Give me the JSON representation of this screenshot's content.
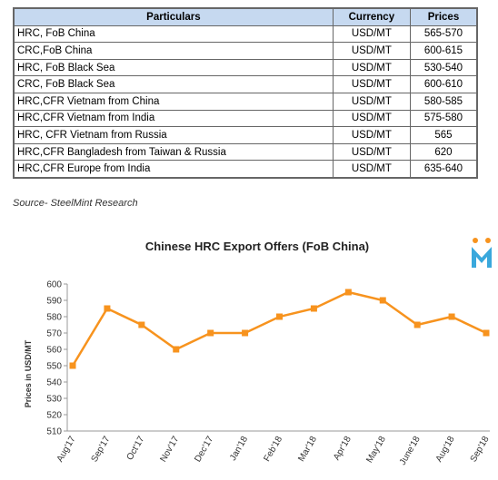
{
  "table": {
    "header": [
      "Particulars",
      "Currency",
      "Prices"
    ],
    "rows": [
      [
        "HRC, FoB China",
        "USD/MT",
        "565-570"
      ],
      [
        "CRC,FoB China",
        "USD/MT",
        "600-615"
      ],
      [
        "HRC, FoB Black Sea",
        "USD/MT",
        "530-540"
      ],
      [
        "CRC, FoB Black Sea",
        "USD/MT",
        "600-610"
      ],
      [
        "HRC,CFR Vietnam from China",
        "USD/MT",
        "580-585"
      ],
      [
        "HRC,CFR Vietnam from India",
        "USD/MT",
        "575-580"
      ],
      [
        "HRC, CFR Vietnam from Russia",
        "USD/MT",
        "565"
      ],
      [
        "HRC,CFR Bangladesh from Taiwan & Russia",
        "USD/MT",
        "620"
      ],
      [
        "HRC,CFR Europe from India",
        "USD/MT",
        "635-640"
      ]
    ]
  },
  "source": "Source- SteelMint Research",
  "chart_data": {
    "type": "line",
    "title": "Chinese HRC Export Offers (FoB China)",
    "y_label": "Prices in USD/MT",
    "categories": [
      "Aug'17",
      "Sep'17",
      "Oct'17",
      "Nov'17",
      "Dec'17",
      "Jan'18",
      "Feb'18",
      "Mar'18",
      "Apr'18",
      "May'18",
      "June'18",
      "Aug'18",
      "Sep'18"
    ],
    "series": [
      {
        "color": "#f7931e",
        "values": [
          550,
          585,
          575,
          560,
          570,
          570,
          580,
          585,
          595,
          590,
          575,
          580,
          570
        ]
      }
    ],
    "ylim": [
      510,
      600
    ],
    "yticks": [
      510,
      520,
      530,
      540,
      550,
      560,
      570,
      580,
      590,
      600
    ]
  }
}
